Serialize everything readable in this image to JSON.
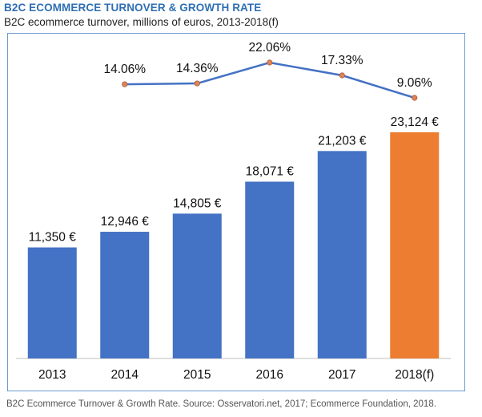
{
  "header": {
    "title": "B2C ECOMMERCE TURNOVER & GROWTH RATE",
    "subtitle": "B2C ecommerce turnover, millions of euros, 2013-2018(f)"
  },
  "caption": "B2C Ecommerce Turnover & Growth Rate. Source: Osservatori.net, 2017; Ecommerce Foundation, 2018.",
  "colors": {
    "bar_default": "#4472c4",
    "bar_forecast": "#ed7d31",
    "line": "#4472c4",
    "marker": "#e0835a",
    "text": "#111111"
  },
  "chart_data": {
    "type": "bar",
    "title": "B2C ECOMMERCE TURNOVER & GROWTH RATE",
    "subtitle": "B2C ecommerce turnover, millions of euros, 2013-2018(f)",
    "categories": [
      "2013",
      "2014",
      "2015",
      "2016",
      "2017",
      "2018(f)"
    ],
    "series": [
      {
        "type": "bar",
        "values": [
          11350,
          12946,
          14805,
          18071,
          21203,
          23124
        ],
        "labels": [
          "11,350 €",
          "12,946 €",
          "14,805 €",
          "18,071 €",
          "21,203 €",
          "23,124 €"
        ],
        "highlight_last": true
      },
      {
        "type": "line",
        "values": [
          null,
          14.06,
          14.36,
          22.06,
          17.33,
          9.06
        ],
        "labels": [
          "",
          "14.06%",
          "14.36%",
          "22.06%",
          "17.33%",
          "9.06%"
        ]
      }
    ],
    "ylim": [
      0,
      25000
    ],
    "grid": false,
    "legend": "none"
  }
}
